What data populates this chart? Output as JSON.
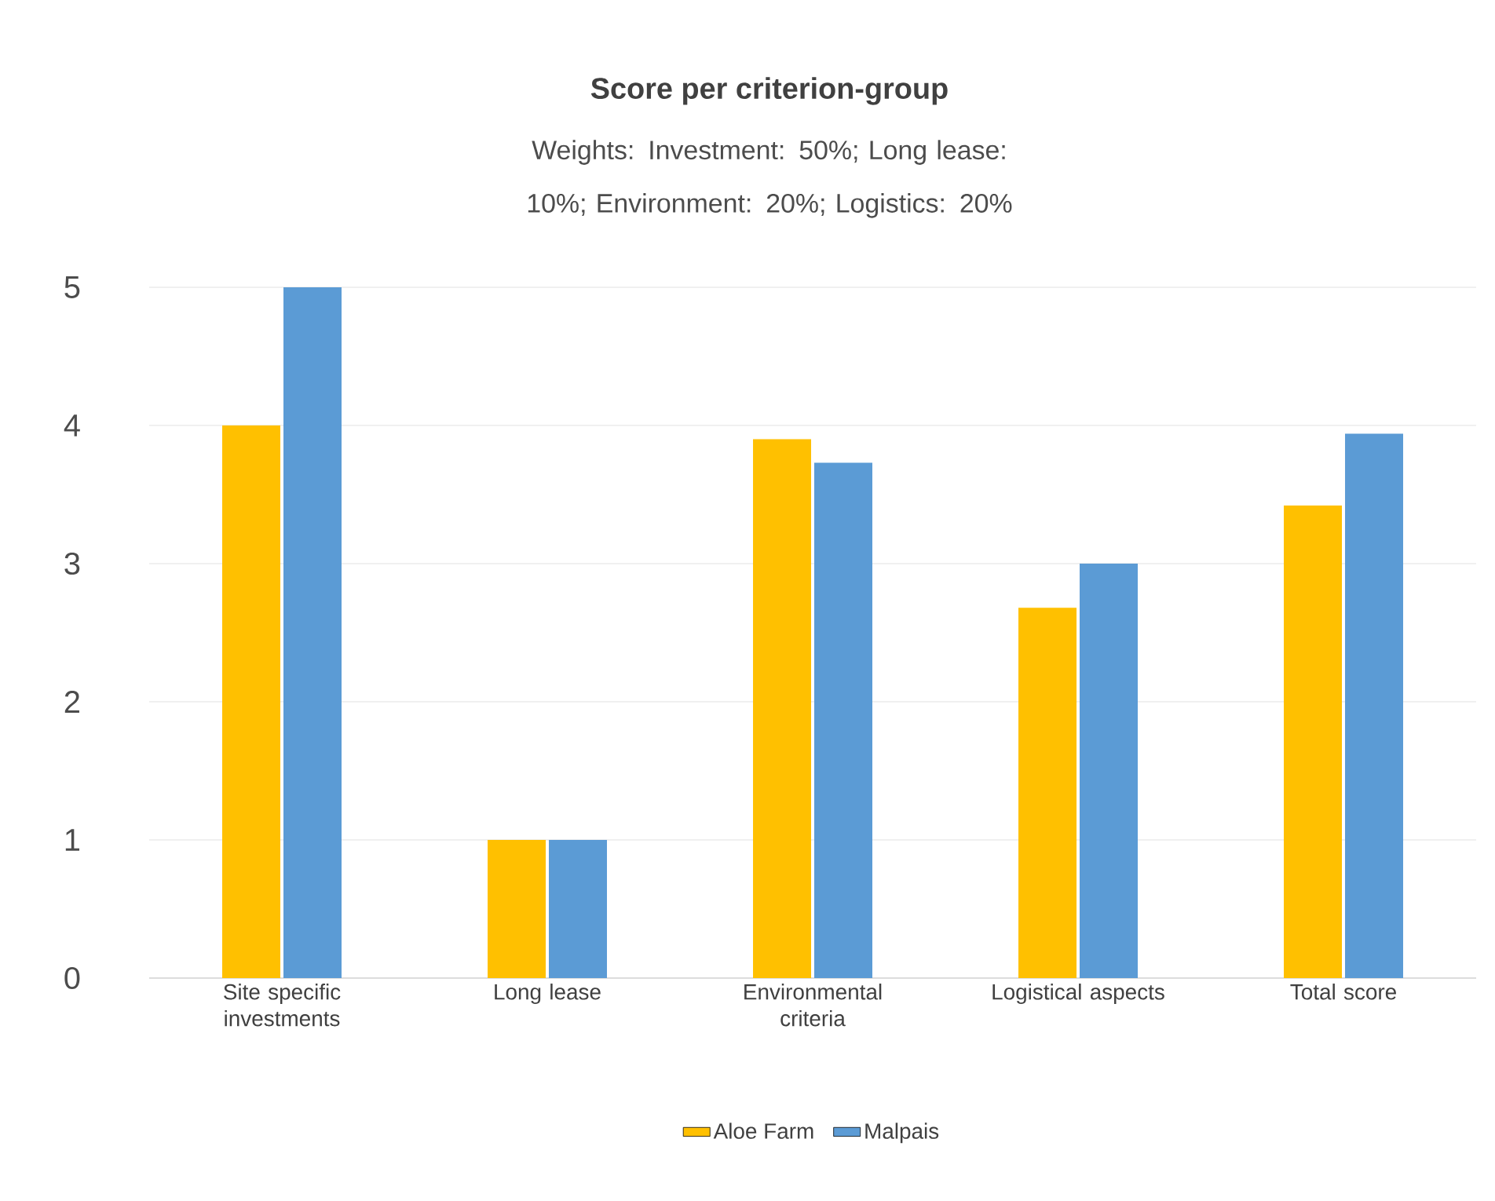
{
  "chart_data": {
    "type": "bar",
    "title": "Score per criterion-group",
    "subtitle": "Weights: Investment: 50%; Long lease: 10%; Environment: 20%; Logistics: 20%",
    "categories": [
      "Site specific investments",
      "Long lease",
      "Environmental criteria",
      "Logistical aspects",
      "Total score"
    ],
    "series": [
      {
        "name": "Aloe Farm",
        "color": "#ffc000",
        "values": [
          4,
          1,
          3.9,
          2.68,
          3.42
        ]
      },
      {
        "name": "Malpais",
        "color": "#5b9bd5",
        "values": [
          5,
          1,
          3.73,
          3.0,
          3.94
        ]
      }
    ],
    "ylim": [
      0,
      5
    ],
    "yticks": [
      0,
      1,
      2,
      3,
      4,
      5
    ],
    "grid": "y",
    "legend": "bottom"
  }
}
